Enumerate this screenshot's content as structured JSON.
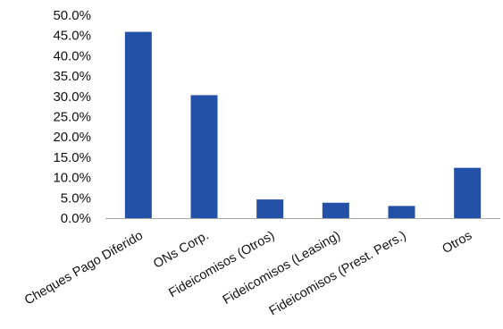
{
  "chart_data": {
    "type": "bar",
    "categories": [
      "Cheques Pago Diferido",
      "ONs Corp.",
      "Fideicomisos (Otros)",
      "Fideicomisos (Leasing)",
      "Fideicomisos (Prest. Pers.)",
      "Otros"
    ],
    "values": [
      45.9,
      30.3,
      4.6,
      3.8,
      3.0,
      12.4
    ],
    "ylim": [
      0,
      50
    ],
    "yticks": [
      0,
      5,
      10,
      15,
      20,
      25,
      30,
      35,
      40,
      45,
      50
    ],
    "ytick_labels": [
      "0.0%",
      "5.0%",
      "10.0%",
      "15.0%",
      "20.0%",
      "25.0%",
      "30.0%",
      "35.0%",
      "40.0%",
      "45.0%",
      "50.0%"
    ],
    "title": "",
    "xlabel": "",
    "ylabel": "",
    "grid": false,
    "legend": "none",
    "colors": {
      "bar": "#2351a8",
      "axis": "#a6a6a6",
      "text": "#111111"
    }
  }
}
